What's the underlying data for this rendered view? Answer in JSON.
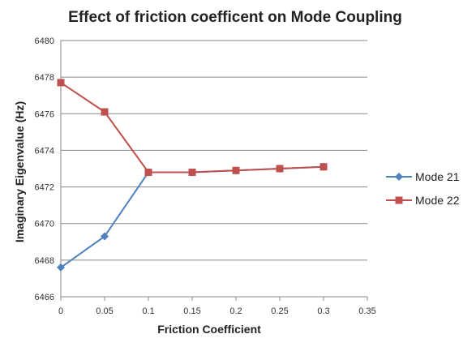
{
  "chart_data": {
    "type": "line",
    "title": "Effect of friction coefficent on Mode Coupling",
    "xlabel": "Friction Coefficient",
    "ylabel": "Imaginary Eigenvalue (Hz)",
    "xlim": [
      0,
      0.35
    ],
    "ylim": [
      6466,
      6480
    ],
    "x_ticks": [
      "0",
      "0.05",
      "0.1",
      "0.15",
      "0.2",
      "0.25",
      "0.3",
      "0.35"
    ],
    "y_ticks": [
      "6466",
      "6468",
      "6470",
      "6472",
      "6474",
      "6476",
      "6478",
      "6480"
    ],
    "grid": "horizontal",
    "legend_position": "right",
    "series": [
      {
        "name": "Mode 21",
        "color": "#4F81BD",
        "marker": "diamond",
        "x": [
          0,
          0.05,
          0.1,
          0.15,
          0.2,
          0.25,
          0.3
        ],
        "y": [
          6467.6,
          6469.3,
          6472.8,
          6472.8,
          6472.9,
          6473.0,
          6473.1
        ]
      },
      {
        "name": "Mode 22",
        "color": "#C0504D",
        "marker": "square",
        "x": [
          0,
          0.05,
          0.1,
          0.15,
          0.2,
          0.25,
          0.3
        ],
        "y": [
          6477.7,
          6476.1,
          6472.8,
          6472.8,
          6472.9,
          6473.0,
          6473.1
        ]
      }
    ]
  }
}
